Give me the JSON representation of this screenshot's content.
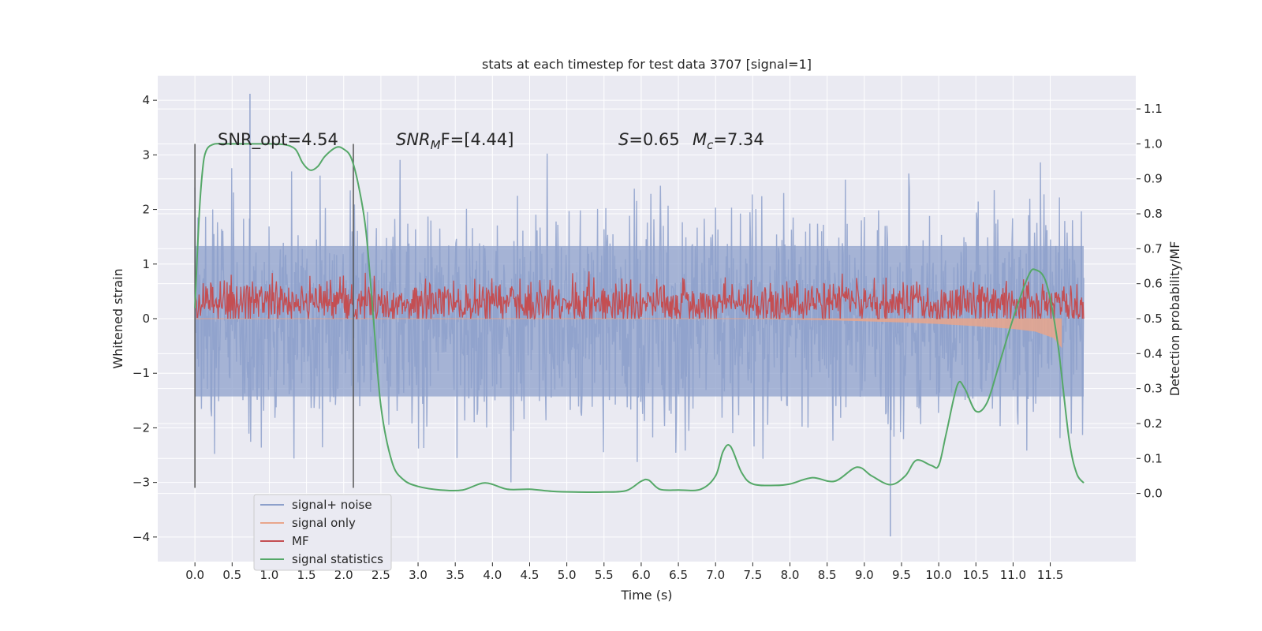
{
  "chart_data": {
    "type": "line",
    "title": "stats at each timestep for test data 3707 [signal=1]",
    "xlabel": "Time (s)",
    "ylabel_left": "Whitened strain",
    "ylabel_right": "Detection probability/MF",
    "xlim": [
      -0.5,
      12.65
    ],
    "ylim_left": [
      -4.45,
      4.45
    ],
    "ylim_right": [
      -0.195,
      1.195
    ],
    "x_ticks": [
      "0.0",
      "0.5",
      "1.0",
      "1.5",
      "2.0",
      "2.5",
      "3.0",
      "3.5",
      "4.0",
      "4.5",
      "5.0",
      "5.5",
      "6.0",
      "6.5",
      "7.0",
      "7.5",
      "8.0",
      "8.5",
      "9.0",
      "9.5",
      "10.0",
      "10.5",
      "11.0",
      "11.5"
    ],
    "y_ticks_left": [
      "4",
      "3",
      "2",
      "1",
      "0",
      "−1",
      "−2",
      "−3",
      "−4"
    ],
    "y_ticks_right": [
      "1.1",
      "1.0",
      "0.9",
      "0.8",
      "0.7",
      "0.6",
      "0.5",
      "0.4",
      "0.3",
      "0.2",
      "0.1",
      "0.0"
    ],
    "grid": true,
    "legend_position": "lower-left",
    "annotations": {
      "snr_opt": "SNR_opt=4.54",
      "snr_mf_sym": "SNR",
      "snr_mf_sub": "M",
      "snr_mf_rest": "F=[4.44]",
      "s_sym": "S",
      "s_val": "=0.65",
      "mc_sym": "M",
      "mc_sub": "c",
      "mc_val": "=7.34"
    },
    "vertical_markers": [
      0.0,
      2.13
    ],
    "series": [
      {
        "name": "signal+ noise",
        "color": "#8da0cb",
        "axis": "left",
        "x_range": [
          0.0,
          11.95
        ],
        "band_core": [
          -1.9,
          1.9
        ],
        "peak_range": [
          -3.99,
          4.12
        ],
        "description_points": {
          "max_at_0.74": 4.12,
          "min_at_9.35": -3.99
        }
      },
      {
        "name": "signal only",
        "color": "#e9a68c",
        "axis": "left",
        "x": [
          0.0,
          7.5,
          8.5,
          9.5,
          10.0,
          10.5,
          11.0,
          11.3,
          11.55,
          11.65
        ],
        "values": [
          0.0,
          0.0,
          -0.02,
          -0.06,
          -0.09,
          -0.13,
          -0.18,
          -0.23,
          -0.35,
          -0.52
        ]
      },
      {
        "name": "MF",
        "color": "#c44e52",
        "axis": "right",
        "x_range": [
          0.0,
          11.95
        ],
        "range": [
          0.5,
          0.63
        ]
      },
      {
        "name": "signal statistics",
        "color": "#55a868",
        "axis": "right",
        "x": [
          0.0,
          0.05,
          0.1,
          0.15,
          0.25,
          0.4,
          0.6,
          0.8,
          1.0,
          1.2,
          1.35,
          1.45,
          1.55,
          1.65,
          1.75,
          1.9,
          2.0,
          2.1,
          2.2,
          2.3,
          2.4,
          2.5,
          2.65,
          2.8,
          3.0,
          3.3,
          3.6,
          3.9,
          4.2,
          4.5,
          4.8,
          5.1,
          5.5,
          5.8,
          6.0,
          6.1,
          6.25,
          6.5,
          6.8,
          7.0,
          7.1,
          7.2,
          7.35,
          7.5,
          7.8,
          8.0,
          8.3,
          8.6,
          8.9,
          9.1,
          9.35,
          9.55,
          9.7,
          9.9,
          10.0,
          10.1,
          10.25,
          10.35,
          10.5,
          10.65,
          10.8,
          11.0,
          11.2,
          11.3,
          11.45,
          11.6,
          11.75,
          11.85,
          11.95
        ],
        "values": [
          0.53,
          0.77,
          0.92,
          0.98,
          0.999,
          1.0,
          1.0,
          1.0,
          1.0,
          0.998,
          0.985,
          0.945,
          0.925,
          0.935,
          0.965,
          0.99,
          0.985,
          0.96,
          0.88,
          0.75,
          0.5,
          0.25,
          0.09,
          0.04,
          0.02,
          0.01,
          0.01,
          0.03,
          0.012,
          0.012,
          0.006,
          0.004,
          0.004,
          0.008,
          0.035,
          0.038,
          0.012,
          0.01,
          0.012,
          0.05,
          0.12,
          0.135,
          0.06,
          0.027,
          0.023,
          0.027,
          0.045,
          0.035,
          0.075,
          0.05,
          0.025,
          0.05,
          0.095,
          0.08,
          0.08,
          0.17,
          0.31,
          0.3,
          0.235,
          0.26,
          0.36,
          0.5,
          0.62,
          0.64,
          0.6,
          0.43,
          0.16,
          0.06,
          0.03
        ]
      }
    ]
  }
}
